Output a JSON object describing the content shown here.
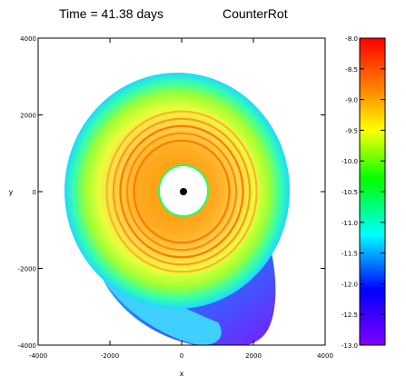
{
  "chart_data": {
    "type": "heatmap",
    "title": "Time =   41.38 days",
    "label": "CounterRot",
    "xlabel": "x",
    "ylabel": "y",
    "xlim": [
      -4000,
      4000
    ],
    "ylim": [
      -4000,
      4000
    ],
    "xticks": [
      -4000,
      -2000,
      0,
      2000,
      4000
    ],
    "yticks": [
      -4000,
      -2000,
      0,
      2000,
      4000
    ],
    "xtick_labels": [
      "-4000",
      "-2000",
      "0",
      "2000",
      "4000"
    ],
    "ytick_labels": [
      "-4000",
      "-2000",
      "0",
      "2000",
      "4000"
    ],
    "colorbar": {
      "range": [
        -13.0,
        -8.0
      ],
      "ticks": [
        -8.0,
        -8.5,
        -9.0,
        -9.5,
        -10.0,
        -10.5,
        -11.0,
        -11.5,
        -12.0,
        -12.5,
        -13.0
      ],
      "tick_labels": [
        "-8.0",
        "-8.5",
        "-9.0",
        "-9.5",
        "-10.0",
        "-10.5",
        "-11.0",
        "-11.5",
        "-12.0",
        "-12.5",
        "-13.0"
      ],
      "colors": [
        "#ff0000",
        "#ff8000",
        "#ffff00",
        "#00ff00",
        "#00ffff",
        "#0000ff",
        "#8000ff"
      ]
    },
    "features": {
      "disk_center": [
        0,
        0
      ],
      "disk_outer_radius": 2900,
      "inner_hole_radius": 600,
      "central_object_radius": 90,
      "tail_direction": "lower-right",
      "ring_radii": [
        1400,
        1600,
        1800,
        2000,
        2200
      ]
    }
  }
}
